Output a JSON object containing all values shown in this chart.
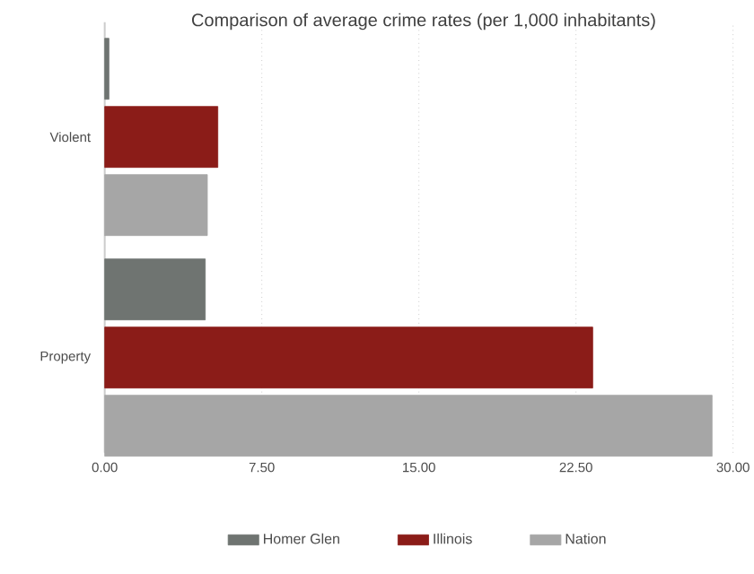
{
  "chart_data": {
    "type": "bar",
    "orientation": "horizontal",
    "title": "Comparison of average crime rates (per 1,000 inhabitants)",
    "categories": [
      "Violent",
      "Property"
    ],
    "series": [
      {
        "name": "Homer Glen",
        "color": "#6f7471",
        "values": [
          0.2,
          4.8
        ]
      },
      {
        "name": "Illinois",
        "color": "#8b1c18",
        "values": [
          5.4,
          23.3
        ]
      },
      {
        "name": "Nation",
        "color": "#a6a6a6",
        "values": [
          4.9,
          29.0
        ]
      }
    ],
    "xlim": [
      0,
      30
    ],
    "xticks": [
      {
        "value": 0,
        "label": "0.00"
      },
      {
        "value": 7.5,
        "label": "7.50"
      },
      {
        "value": 15,
        "label": "15.00"
      },
      {
        "value": 22.5,
        "label": "22.50"
      },
      {
        "value": 30,
        "label": "30.00"
      }
    ],
    "grid": "x",
    "legend": "bottom"
  }
}
